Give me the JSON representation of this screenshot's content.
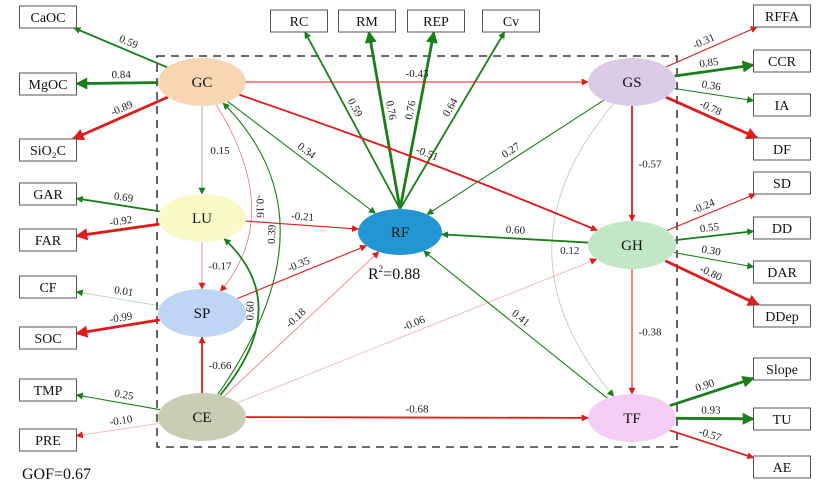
{
  "colors": {
    "positive": "#1a7f1a",
    "negative": "#e01b1b"
  },
  "latents": [
    {
      "id": "GC",
      "label": "GC",
      "color": "#f9d6b2"
    },
    {
      "id": "LU",
      "label": "LU",
      "color": "#fafac9"
    },
    {
      "id": "SP",
      "label": "SP",
      "color": "#bfd5f6"
    },
    {
      "id": "CE",
      "label": "CE",
      "color": "#cacdb3"
    },
    {
      "id": "RF",
      "label": "RF",
      "color": "#2196d3"
    },
    {
      "id": "GS",
      "label": "GS",
      "color": "#dccbe6"
    },
    {
      "id": "GH",
      "label": "GH",
      "color": "#c2e7c4"
    },
    {
      "id": "TF",
      "label": "TF",
      "color": "#f5cdf6"
    }
  ],
  "indicators": [
    {
      "id": "CaOC",
      "label": "CaOC"
    },
    {
      "id": "MgOC",
      "label": "MgOC"
    },
    {
      "id": "SiO2C",
      "label": "SiO₂C"
    },
    {
      "id": "GAR",
      "label": "GAR"
    },
    {
      "id": "FAR",
      "label": "FAR"
    },
    {
      "id": "CF",
      "label": "CF"
    },
    {
      "id": "SOC",
      "label": "SOC"
    },
    {
      "id": "TMP",
      "label": "TMP"
    },
    {
      "id": "PRE",
      "label": "PRE"
    },
    {
      "id": "RC",
      "label": "RC"
    },
    {
      "id": "RM",
      "label": "RM"
    },
    {
      "id": "REP",
      "label": "REP"
    },
    {
      "id": "Cv",
      "label": "Cv"
    },
    {
      "id": "RFFA",
      "label": "RFFA"
    },
    {
      "id": "CCR",
      "label": "CCR"
    },
    {
      "id": "IA",
      "label": "IA"
    },
    {
      "id": "DF",
      "label": "DF"
    },
    {
      "id": "SD",
      "label": "SD"
    },
    {
      "id": "DD",
      "label": "DD"
    },
    {
      "id": "DAR",
      "label": "DAR"
    },
    {
      "id": "DDep",
      "label": "DDep"
    },
    {
      "id": "Slope",
      "label": "Slope"
    },
    {
      "id": "TU",
      "label": "TU"
    },
    {
      "id": "AE",
      "label": "AE"
    }
  ],
  "paths": [
    {
      "from": "GC",
      "to": "CaOC",
      "value": "0.59"
    },
    {
      "from": "GC",
      "to": "MgOC",
      "value": "0.84"
    },
    {
      "from": "GC",
      "to": "SiO2C",
      "value": "-0.89"
    },
    {
      "from": "LU",
      "to": "GAR",
      "value": "0.69"
    },
    {
      "from": "LU",
      "to": "FAR",
      "value": "-0.92"
    },
    {
      "from": "SP",
      "to": "CF",
      "value": "0.01"
    },
    {
      "from": "SP",
      "to": "SOC",
      "value": "-0.99"
    },
    {
      "from": "CE",
      "to": "TMP",
      "value": "0.25"
    },
    {
      "from": "CE",
      "to": "PRE",
      "value": "-0.10"
    },
    {
      "from": "RF",
      "to": "RC",
      "value": "0.59"
    },
    {
      "from": "RF",
      "to": "RM",
      "value": "0.76"
    },
    {
      "from": "RF",
      "to": "REP",
      "value": "0.76"
    },
    {
      "from": "RF",
      "to": "Cv",
      "value": "0.64"
    },
    {
      "from": "GS",
      "to": "RFFA",
      "value": "-0.31"
    },
    {
      "from": "GS",
      "to": "CCR",
      "value": "0.85"
    },
    {
      "from": "GS",
      "to": "IA",
      "value": "0.36"
    },
    {
      "from": "GS",
      "to": "DF",
      "value": "-0.78"
    },
    {
      "from": "GH",
      "to": "SD",
      "value": "-0.24"
    },
    {
      "from": "GH",
      "to": "DD",
      "value": "0.55"
    },
    {
      "from": "GH",
      "to": "DAR",
      "value": "0.30"
    },
    {
      "from": "GH",
      "to": "DDep",
      "value": "-0.80"
    },
    {
      "from": "TF",
      "to": "Slope",
      "value": "0.90"
    },
    {
      "from": "TF",
      "to": "TU",
      "value": "0.93"
    },
    {
      "from": "TF",
      "to": "AE",
      "value": "-0.57"
    },
    {
      "from": "GC",
      "to": "GS",
      "value": "-0.43"
    },
    {
      "from": "GC",
      "to": "LU",
      "value": "0.15"
    },
    {
      "from": "GC",
      "to": "RF",
      "value": "0.34"
    },
    {
      "from": "GC",
      "to": "GH",
      "value": "-0.51"
    },
    {
      "from": "GC",
      "to": "SP",
      "value": "-0.16"
    },
    {
      "from": "CE",
      "to": "GC",
      "value": "0.39"
    },
    {
      "from": "LU",
      "to": "RF",
      "value": "-0.21"
    },
    {
      "from": "LU",
      "to": "SP",
      "value": "-0.17"
    },
    {
      "from": "CE",
      "to": "LU",
      "value": "0.60"
    },
    {
      "from": "SP",
      "to": "RF",
      "value": "-0.35"
    },
    {
      "from": "CE",
      "to": "SP",
      "value": "-0.66"
    },
    {
      "from": "CE",
      "to": "RF",
      "value": "-0.18"
    },
    {
      "from": "CE",
      "to": "GH",
      "value": "-0.06"
    },
    {
      "from": "CE",
      "to": "TF",
      "value": "-0.68"
    },
    {
      "from": "GS",
      "to": "RF",
      "value": "0.27"
    },
    {
      "from": "GS",
      "to": "GH",
      "value": "-0.57"
    },
    {
      "from": "GS",
      "to": "TF",
      "value": "0.12"
    },
    {
      "from": "GH",
      "to": "RF",
      "value": "0.60"
    },
    {
      "from": "GH",
      "to": "TF",
      "value": "-0.38"
    },
    {
      "from": "TF",
      "to": "RF",
      "value": "0.41"
    }
  ],
  "r2": {
    "prefix": "R",
    "sup": "2",
    "value": "=0.88"
  },
  "gof": "GOF=0.67"
}
